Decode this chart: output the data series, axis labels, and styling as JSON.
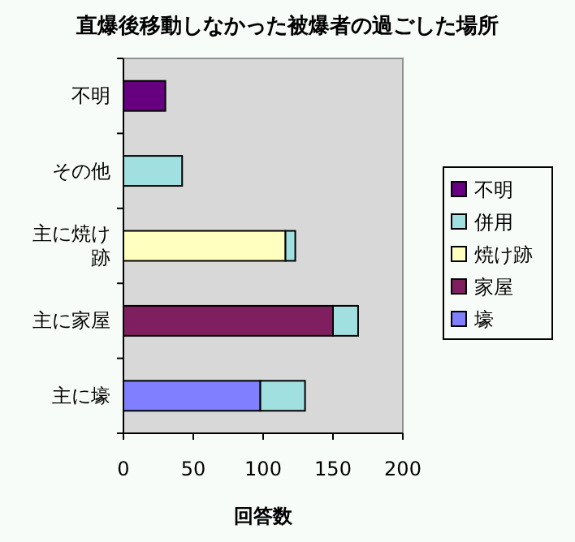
{
  "chart_data": {
    "type": "bar",
    "orientation": "horizontal",
    "stacked": true,
    "title": "直爆後移動しなかった被爆者の過ごした場所",
    "xlabel": "回答数",
    "categories": [
      "不明",
      "その他",
      "主に焼け跡",
      "主に家屋",
      "主に壕"
    ],
    "series": [
      {
        "name": "壕",
        "color": "#7f7fff",
        "values": [
          null,
          null,
          null,
          null,
          98
        ]
      },
      {
        "name": "家屋",
        "color": "#7f1f5f",
        "values": [
          null,
          null,
          null,
          150,
          null
        ]
      },
      {
        "name": "焼け跡",
        "color": "#ffffc0",
        "values": [
          null,
          null,
          116,
          null,
          null
        ]
      },
      {
        "name": "併用",
        "color": "#a0e0e0",
        "values": [
          null,
          42,
          7,
          18,
          32
        ]
      },
      {
        "name": "不明",
        "color": "#660080",
        "values": [
          30,
          null,
          null,
          null,
          null
        ]
      }
    ],
    "xlim": [
      0,
      200
    ],
    "xticks": [
      0,
      50,
      100,
      150,
      200
    ],
    "grid": false,
    "legend": "right"
  }
}
